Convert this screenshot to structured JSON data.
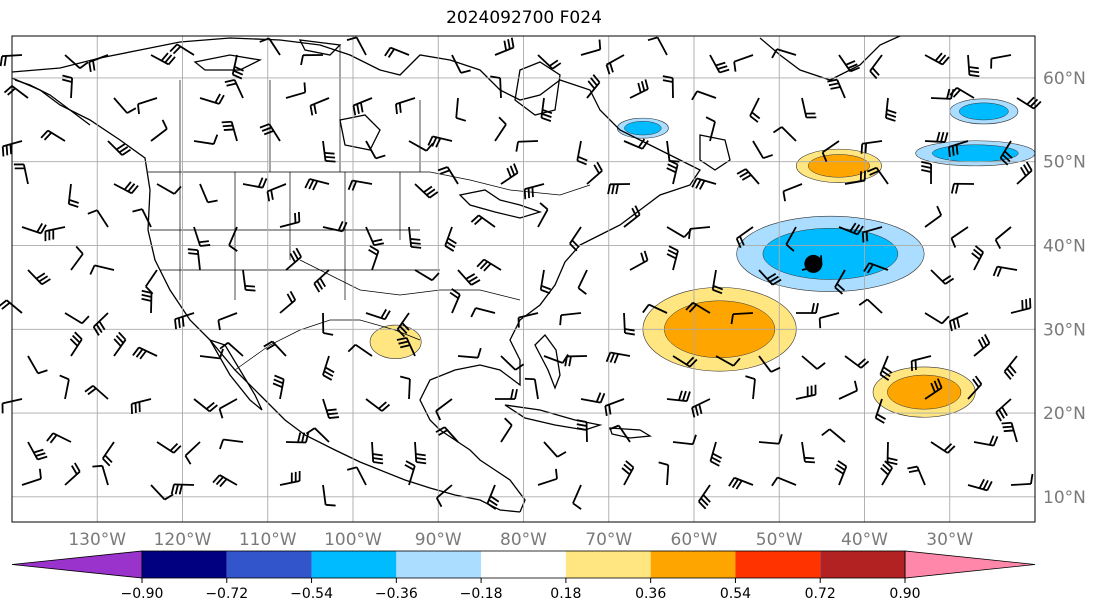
{
  "title": "2024092700 F024",
  "map": {
    "projection": "PlateCarree",
    "lon_range": [
      -140,
      -20
    ],
    "lat_range": [
      7,
      65
    ],
    "gridlines": true,
    "lat_ticks": [
      {
        "value": 60,
        "label": "60°N"
      },
      {
        "value": 50,
        "label": "50°N"
      },
      {
        "value": 40,
        "label": "40°N"
      },
      {
        "value": 30,
        "label": "30°N"
      },
      {
        "value": 20,
        "label": "20°N"
      },
      {
        "value": 10,
        "label": "10°N"
      }
    ],
    "lon_ticks": [
      {
        "value": -130,
        "label": "130°W"
      },
      {
        "value": -120,
        "label": "120°W"
      },
      {
        "value": -110,
        "label": "110°W"
      },
      {
        "value": -100,
        "label": "100°W"
      },
      {
        "value": -90,
        "label": "90°W"
      },
      {
        "value": -80,
        "label": "80°W"
      },
      {
        "value": -70,
        "label": "70°W"
      },
      {
        "value": -60,
        "label": "60°W"
      },
      {
        "value": -50,
        "label": "50°W"
      },
      {
        "value": -40,
        "label": "40°W"
      },
      {
        "value": -30,
        "label": "30°W"
      }
    ],
    "marker": {
      "lon": -46,
      "lat": 37.8,
      "color": "#000000"
    }
  },
  "colorbar": {
    "orientation": "horizontal",
    "extend": "both",
    "colors": [
      "#9933cc",
      "#000080",
      "#3355cc",
      "#00bbff",
      "#aaddff",
      "#ffffff",
      "#ffe680",
      "#ffa500",
      "#ff3300",
      "#b22222",
      "#ff88aa"
    ],
    "ticks": [
      "−0.90",
      "−0.72",
      "−0.54",
      "−0.36",
      "−0.18",
      "0.18",
      "0.36",
      "0.54",
      "0.72",
      "0.90"
    ]
  },
  "shaded_regions": [
    {
      "level": "positive",
      "color": "#ffe680",
      "inner": "#ffa500",
      "lon": -57,
      "lat": 30,
      "rx": 9,
      "ry": 5
    },
    {
      "level": "positive",
      "color": "#ffe680",
      "inner": "#ffa500",
      "lon": -33,
      "lat": 22.5,
      "rx": 6,
      "ry": 3
    },
    {
      "level": "positive",
      "color": "#ffe680",
      "inner": "#ffa500",
      "lon": -43,
      "lat": 49.5,
      "rx": 5,
      "ry": 2
    },
    {
      "level": "positive",
      "color": "#ffe680",
      "inner": "",
      "lon": -95,
      "lat": 28.5,
      "rx": 3,
      "ry": 2
    },
    {
      "level": "negative",
      "color": "#aaddff",
      "inner": "#00bbff",
      "lon": -44,
      "lat": 39,
      "rx": 11,
      "ry": 4.5
    },
    {
      "level": "negative",
      "color": "#aaddff",
      "inner": "#00bbff",
      "lon": -27,
      "lat": 51,
      "rx": 7,
      "ry": 1.5
    },
    {
      "level": "negative",
      "color": "#aaddff",
      "inner": "#00bbff",
      "lon": -26,
      "lat": 56,
      "rx": 4,
      "ry": 1.5
    },
    {
      "level": "negative",
      "color": "#aaddff",
      "inner": "#00bbff",
      "lon": -66,
      "lat": 54,
      "rx": 3,
      "ry": 1.2
    }
  ]
}
